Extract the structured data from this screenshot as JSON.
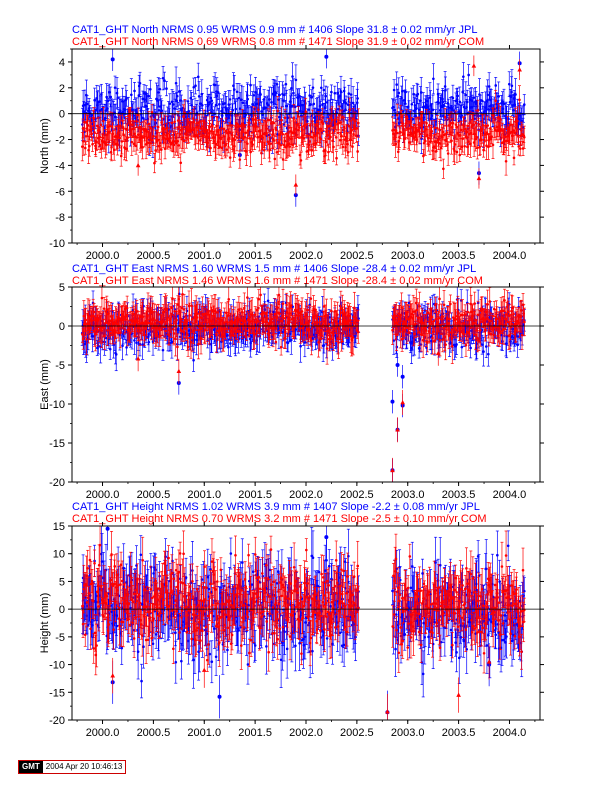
{
  "chart_data": [
    {
      "type": "scatter",
      "title_lines": [
        {
          "text": "CAT1_GHT North NRMS 0.95 WRMS  0.9 mm # 1406 Slope   31.8 ±  0.02 mm/yr JPL",
          "color": "#0000ff"
        },
        {
          "text": "CAT1_GHT North NRMS 0.69 WRMS  0.8 mm # 1471 Slope   31.9 ±  0.02 mm/yr COM",
          "color": "#ff0000"
        }
      ],
      "ylabel": "North (mm)",
      "xlim": [
        1999.7,
        2004.3
      ],
      "ylim": [
        -10,
        5
      ],
      "yticks": [
        -10,
        -8,
        -6,
        -4,
        -2,
        0,
        2,
        4
      ],
      "xticks": [
        "2000.0",
        "2000.5",
        "2001.0",
        "2001.5",
        "2002.0",
        "2002.5",
        "2003.0",
        "2003.5",
        "2004.0"
      ],
      "zero_line": true,
      "series": [
        {
          "name": "JPL",
          "color": "#0000ff",
          "spread": 1.0,
          "err": 0.9,
          "offset": 0.2,
          "outliers": [
            [
              2000.1,
              4.2
            ],
            [
              2002.2,
              4.4
            ],
            [
              2001.9,
              -6.3
            ],
            [
              2003.7,
              -4.6
            ],
            [
              2004.1,
              3.9
            ],
            [
              2001.35,
              -3.2
            ]
          ]
        },
        {
          "name": "COM",
          "color": "#ff0000",
          "spread": 0.8,
          "err": 0.8,
          "offset": -1.6,
          "outliers": [
            [
              2001.9,
              -5.5
            ],
            [
              2003.7,
              -5.0
            ],
            [
              2003.65,
              3.7
            ],
            [
              2004.1,
              3.4
            ],
            [
              2000.35,
              -4.0
            ]
          ]
        }
      ]
    },
    {
      "type": "scatter",
      "title_lines": [
        {
          "text": "CAT1_GHT East NRMS 1.60 WRMS  1.5 mm # 1406 Slope  -28.4 ±  0.02 mm/yr JPL",
          "color": "#0000ff"
        },
        {
          "text": "CAT1_GHT East NRMS 1.46 WRMS  1.6 mm # 1471 Slope  -28.4 ±  0.02 mm/yr COM",
          "color": "#ff0000"
        }
      ],
      "ylabel": "East (mm)",
      "xlim": [
        1999.7,
        2004.3
      ],
      "ylim": [
        -20,
        5
      ],
      "yticks": [
        -20,
        -15,
        -10,
        -5,
        0,
        5
      ],
      "xticks": [
        "2000.0",
        "2000.5",
        "2001.0",
        "2001.5",
        "2002.0",
        "2002.5",
        "2003.0",
        "2003.5",
        "2004.0"
      ],
      "zero_line": true,
      "series": [
        {
          "name": "JPL",
          "color": "#0000ff",
          "spread": 1.3,
          "err": 1.5,
          "offset": -0.3,
          "outliers": [
            [
              2002.85,
              -18.5
            ],
            [
              2002.9,
              -13.3
            ],
            [
              2002.85,
              -9.7
            ],
            [
              2002.95,
              -10.2
            ],
            [
              2002.95,
              -6.5
            ],
            [
              2000.75,
              -7.3
            ],
            [
              2002.9,
              -5.0
            ]
          ]
        },
        {
          "name": "COM",
          "color": "#ff0000",
          "spread": 1.2,
          "err": 1.6,
          "offset": 0.5,
          "outliers": [
            [
              2002.95,
              -9.8
            ],
            [
              2002.9,
              -13.3
            ],
            [
              2002.85,
              -18.5
            ],
            [
              2000.75,
              -5.8
            ],
            [
              2000.35,
              -4.2
            ],
            [
              2003.3,
              -3.5
            ]
          ]
        }
      ]
    },
    {
      "type": "scatter",
      "title_lines": [
        {
          "text": "CAT1_GHT Height NRMS 1.02 WRMS  3.9 mm # 1407 Slope   -2.2 ±  0.08 mm/yr JPL",
          "color": "#0000ff"
        },
        {
          "text": "CAT1_GHT Height NRMS 0.70 WRMS  3.2 mm # 1471 Slope   -2.5 ±  0.10 mm/yr COM",
          "color": "#ff0000"
        }
      ],
      "ylabel": "Height (mm)",
      "xlim": [
        1999.7,
        2004.3
      ],
      "ylim": [
        -20,
        15
      ],
      "yticks": [
        -20,
        -15,
        -10,
        -5,
        0,
        5,
        10,
        15
      ],
      "xticks": [
        "2000.0",
        "2000.5",
        "2001.0",
        "2001.5",
        "2002.0",
        "2002.5",
        "2003.0",
        "2003.5",
        "2004.0"
      ],
      "zero_line": true,
      "series": [
        {
          "name": "JPL",
          "color": "#0000ff",
          "spread": 4.2,
          "err": 3.9,
          "offset": 0.0,
          "outliers": [
            [
              2002.8,
              -18.6
            ],
            [
              2000.1,
              -13.2
            ],
            [
              2001.15,
              -15.8
            ],
            [
              2003.8,
              -10.0
            ],
            [
              2002.2,
              13.0
            ],
            [
              2000.05,
              14.5
            ]
          ]
        },
        {
          "name": "COM",
          "color": "#ff0000",
          "spread": 3.5,
          "err": 3.2,
          "offset": 1.0,
          "outliers": [
            [
              2002.8,
              -18.5
            ],
            [
              2003.5,
              -15.5
            ],
            [
              2003.8,
              -9.5
            ],
            [
              2000.1,
              -12.0
            ],
            [
              2001.0,
              -11.0
            ]
          ]
        }
      ]
    }
  ],
  "stamp": {
    "logo": "GMT",
    "timestamp": "2004 Apr 20 10:46:13"
  }
}
